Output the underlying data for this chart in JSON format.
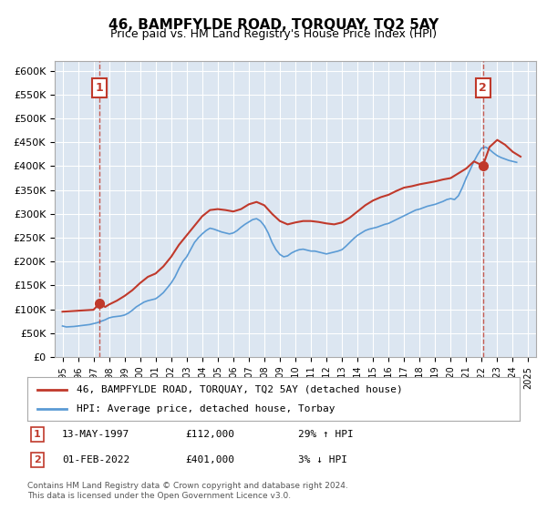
{
  "title": "46, BAMPFYLDE ROAD, TORQUAY, TQ2 5AY",
  "subtitle": "Price paid vs. HM Land Registry's House Price Index (HPI)",
  "ylim": [
    0,
    620000
  ],
  "yticks": [
    0,
    50000,
    100000,
    150000,
    200000,
    250000,
    300000,
    350000,
    400000,
    450000,
    500000,
    550000,
    600000
  ],
  "ytick_labels": [
    "£0",
    "£50K",
    "£100K",
    "£150K",
    "£200K",
    "£250K",
    "£300K",
    "£350K",
    "£400K",
    "£450K",
    "£500K",
    "£550K",
    "£600K"
  ],
  "xlim_start": 1994.5,
  "xlim_end": 2025.5,
  "background_color": "#dce6f1",
  "plot_bg_color": "#dce6f1",
  "red_line_color": "#c0392b",
  "blue_line_color": "#5b9bd5",
  "transaction1": {
    "year": 1997.37,
    "price": 112000,
    "label": "1",
    "date": "13-MAY-1997",
    "pct": "29% ↑ HPI"
  },
  "transaction2": {
    "year": 2022.08,
    "price": 401000,
    "label": "2",
    "date": "01-FEB-2022",
    "pct": "3% ↓ HPI"
  },
  "legend_line1": "46, BAMPFYLDE ROAD, TORQUAY, TQ2 5AY (detached house)",
  "legend_line2": "HPI: Average price, detached house, Torbay",
  "footer1": "Contains HM Land Registry data © Crown copyright and database right 2024.",
  "footer2": "This data is licensed under the Open Government Licence v3.0.",
  "hpi_data": {
    "years": [
      1995.0,
      1995.25,
      1995.5,
      1995.75,
      1996.0,
      1996.25,
      1996.5,
      1996.75,
      1997.0,
      1997.25,
      1997.5,
      1997.75,
      1998.0,
      1998.25,
      1998.5,
      1998.75,
      1999.0,
      1999.25,
      1999.5,
      1999.75,
      2000.0,
      2000.25,
      2000.5,
      2000.75,
      2001.0,
      2001.25,
      2001.5,
      2001.75,
      2002.0,
      2002.25,
      2002.5,
      2002.75,
      2003.0,
      2003.25,
      2003.5,
      2003.75,
      2004.0,
      2004.25,
      2004.5,
      2004.75,
      2005.0,
      2005.25,
      2005.5,
      2005.75,
      2006.0,
      2006.25,
      2006.5,
      2006.75,
      2007.0,
      2007.25,
      2007.5,
      2007.75,
      2008.0,
      2008.25,
      2008.5,
      2008.75,
      2009.0,
      2009.25,
      2009.5,
      2009.75,
      2010.0,
      2010.25,
      2010.5,
      2010.75,
      2011.0,
      2011.25,
      2011.5,
      2011.75,
      2012.0,
      2012.25,
      2012.5,
      2012.75,
      2013.0,
      2013.25,
      2013.5,
      2013.75,
      2014.0,
      2014.25,
      2014.5,
      2014.75,
      2015.0,
      2015.25,
      2015.5,
      2015.75,
      2016.0,
      2016.25,
      2016.5,
      2016.75,
      2017.0,
      2017.25,
      2017.5,
      2017.75,
      2018.0,
      2018.25,
      2018.5,
      2018.75,
      2019.0,
      2019.25,
      2019.5,
      2019.75,
      2020.0,
      2020.25,
      2020.5,
      2020.75,
      2021.0,
      2021.25,
      2021.5,
      2021.75,
      2022.0,
      2022.25,
      2022.5,
      2022.75,
      2023.0,
      2023.25,
      2023.5,
      2023.75,
      2024.0,
      2024.25
    ],
    "values": [
      65000,
      63000,
      63500,
      64000,
      65000,
      66000,
      67000,
      68000,
      70000,
      72000,
      75000,
      78000,
      82000,
      84000,
      85000,
      86000,
      88000,
      92000,
      98000,
      105000,
      110000,
      115000,
      118000,
      120000,
      122000,
      128000,
      135000,
      145000,
      155000,
      168000,
      185000,
      200000,
      210000,
      225000,
      240000,
      250000,
      258000,
      265000,
      270000,
      268000,
      265000,
      262000,
      260000,
      258000,
      260000,
      265000,
      272000,
      278000,
      283000,
      288000,
      290000,
      285000,
      275000,
      260000,
      240000,
      225000,
      215000,
      210000,
      212000,
      218000,
      222000,
      225000,
      226000,
      224000,
      222000,
      222000,
      220000,
      218000,
      216000,
      218000,
      220000,
      222000,
      225000,
      232000,
      240000,
      248000,
      255000,
      260000,
      265000,
      268000,
      270000,
      272000,
      275000,
      278000,
      280000,
      284000,
      288000,
      292000,
      296000,
      300000,
      304000,
      308000,
      310000,
      313000,
      316000,
      318000,
      320000,
      323000,
      326000,
      330000,
      332000,
      330000,
      338000,
      355000,
      375000,
      392000,
      410000,
      425000,
      438000,
      440000,
      435000,
      428000,
      422000,
      418000,
      415000,
      412000,
      410000,
      408000
    ]
  },
  "property_data": {
    "years": [
      1995.0,
      1995.5,
      1996.0,
      1996.5,
      1997.0,
      1997.37,
      1997.75,
      1998.0,
      1998.5,
      1999.0,
      1999.5,
      2000.0,
      2000.5,
      2001.0,
      2001.5,
      2002.0,
      2002.5,
      2003.0,
      2003.5,
      2004.0,
      2004.5,
      2005.0,
      2005.5,
      2006.0,
      2006.5,
      2007.0,
      2007.5,
      2008.0,
      2008.5,
      2009.0,
      2009.5,
      2010.0,
      2010.5,
      2011.0,
      2011.5,
      2012.0,
      2012.5,
      2013.0,
      2013.5,
      2014.0,
      2014.5,
      2015.0,
      2015.5,
      2016.0,
      2016.5,
      2017.0,
      2017.5,
      2018.0,
      2018.5,
      2019.0,
      2019.5,
      2020.0,
      2020.5,
      2021.0,
      2021.5,
      2022.08,
      2022.5,
      2023.0,
      2023.5,
      2024.0,
      2024.5
    ],
    "values": [
      95000,
      96000,
      97000,
      98000,
      99000,
      112000,
      105000,
      110000,
      118000,
      128000,
      140000,
      155000,
      168000,
      175000,
      190000,
      210000,
      235000,
      255000,
      275000,
      295000,
      308000,
      310000,
      308000,
      305000,
      310000,
      320000,
      325000,
      318000,
      300000,
      285000,
      278000,
      282000,
      285000,
      285000,
      283000,
      280000,
      278000,
      282000,
      292000,
      305000,
      318000,
      328000,
      335000,
      340000,
      348000,
      355000,
      358000,
      362000,
      365000,
      368000,
      372000,
      375000,
      385000,
      395000,
      410000,
      401000,
      440000,
      455000,
      445000,
      430000,
      420000
    ]
  }
}
